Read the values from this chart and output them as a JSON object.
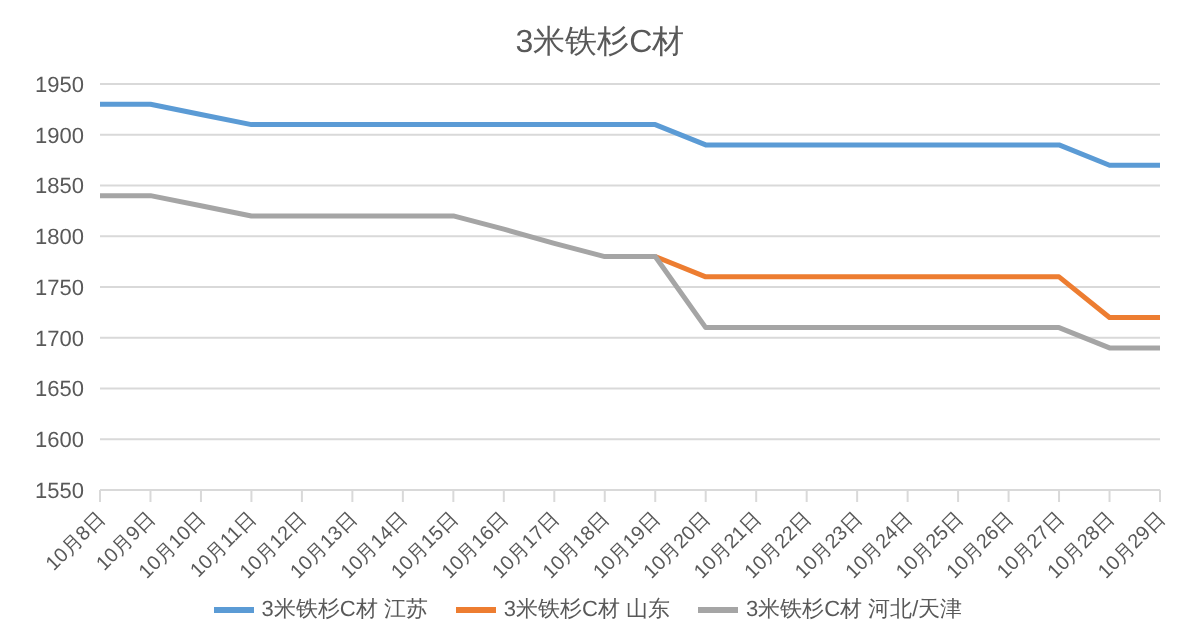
{
  "chart_data": {
    "type": "line",
    "title": "3米铁杉C材",
    "categories": [
      "10月8日",
      "10月9日",
      "10月10日",
      "10月11日",
      "10月12日",
      "10月13日",
      "10月14日",
      "10月15日",
      "10月16日",
      "10月17日",
      "10月18日",
      "10月19日",
      "10月20日",
      "10月21日",
      "10月22日",
      "10月23日",
      "10月24日",
      "10月25日",
      "10月26日",
      "10月27日",
      "10月28日",
      "10月29日"
    ],
    "series": [
      {
        "name": "3米铁杉C材 江苏",
        "color": "#5b9bd5",
        "values": [
          1930,
          1930,
          1920,
          1910,
          1910,
          1910,
          1910,
          1910,
          1910,
          1910,
          1910,
          1910,
          1890,
          1890,
          1890,
          1890,
          1890,
          1890,
          1890,
          1890,
          1870,
          1870
        ]
      },
      {
        "name": "3米铁杉C材 山东",
        "color": "#ed7d31",
        "values": [
          null,
          null,
          null,
          null,
          null,
          null,
          null,
          null,
          null,
          null,
          null,
          1780,
          1760,
          1760,
          1760,
          1760,
          1760,
          1760,
          1760,
          1760,
          1720,
          1720
        ]
      },
      {
        "name": "3米铁杉C材 河北/天津",
        "color": "#a5a5a5",
        "values": [
          1840,
          1840,
          1830,
          1820,
          1820,
          1820,
          1820,
          1820,
          1807,
          1793,
          1780,
          1780,
          1710,
          1710,
          1710,
          1710,
          1710,
          1710,
          1710,
          1710,
          1690,
          1690
        ]
      }
    ],
    "ylim": [
      1550,
      1950
    ],
    "yticks": [
      1550,
      1600,
      1650,
      1700,
      1750,
      1800,
      1850,
      1900,
      1950
    ],
    "grid": "y",
    "legend": "bottom",
    "marker": "none",
    "line_style": "solid"
  }
}
